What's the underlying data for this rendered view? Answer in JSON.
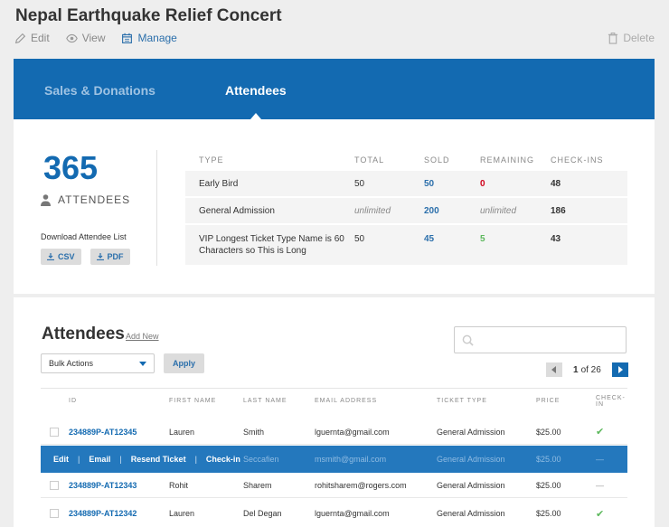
{
  "event": {
    "title": "Nepal Earthquake Relief Concert"
  },
  "actions": {
    "edit": "Edit",
    "view": "View",
    "manage": "Manage",
    "delete": "Delete"
  },
  "tabs": {
    "sales": "Sales & Donations",
    "attendees": "Attendees"
  },
  "summary": {
    "count": "365",
    "count_label": "ATTENDEES",
    "download_label": "Download Attendee List",
    "csv": "CSV",
    "pdf": "PDF"
  },
  "ticket_table": {
    "headers": {
      "type": "TYPE",
      "total": "TOTAL",
      "sold": "SOLD",
      "remaining": "REMAINING",
      "checkins": "CHECK-INS"
    },
    "rows": [
      {
        "type": "Early Bird",
        "total": "50",
        "sold": "50",
        "remaining": "0",
        "checkins": "48"
      },
      {
        "type": "General Admission",
        "total": "unlimited",
        "sold": "200",
        "remaining": "unlimited",
        "checkins": "186"
      },
      {
        "type": "VIP Longest Ticket Type Name is 60 Characters so This is Long",
        "total": "50",
        "sold": "45",
        "remaining": "5",
        "checkins": "43"
      }
    ]
  },
  "attendees": {
    "heading": "Attendees",
    "add_new": "Add New",
    "search_placeholder": "",
    "bulk_actions": "Bulk Actions",
    "apply": "Apply",
    "pager": {
      "current": "1",
      "of_label": "of 26"
    },
    "headers": {
      "id": "ID",
      "first": "FIRST NAME",
      "last": "LAST NAME",
      "email": "EMAIL ADDRESS",
      "ticket": "TICKET TYPE",
      "price": "PRICE",
      "checkin": "CHECK-IN"
    },
    "rows": [
      {
        "id": "234889P-AT12345",
        "first": "Lauren",
        "last": "Smith",
        "email": "lguernta@gmail.com",
        "ticket": "General Admission",
        "price": "$25.00",
        "checkin": "✔"
      },
      {
        "id": "",
        "first": "",
        "last": "Seccafien",
        "email": "msmith@gmail.com",
        "ticket": "General Admission",
        "price": "$25.00",
        "checkin": "—"
      },
      {
        "id": "234889P-AT12343",
        "first": "Rohit",
        "last": "Sharem",
        "email": "rohitsharem@rogers.com",
        "ticket": "General Admission",
        "price": "$25.00",
        "checkin": "—"
      },
      {
        "id": "234889P-AT12342",
        "first": "Lauren",
        "last": "Del Degan",
        "email": "lguernta@gmail.com",
        "ticket": "General Admission",
        "price": "$25.00",
        "checkin": "✔"
      }
    ],
    "row_actions": {
      "edit": "Edit",
      "email": "Email",
      "resend": "Resend Ticket",
      "checkin": "Check-in",
      "sep": "|"
    }
  },
  "colors": {
    "brand_blue": "#136ab1",
    "success": "#5cb85c",
    "danger": "#d0021b"
  }
}
